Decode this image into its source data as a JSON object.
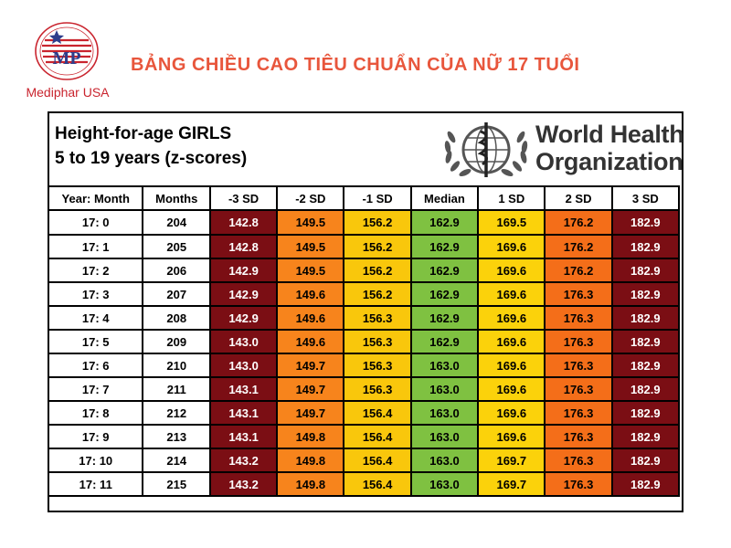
{
  "brand": {
    "name": "Mediphar USA",
    "monogram": "MP"
  },
  "page_title": "BẢNG CHIỀU CAO TIÊU CHUẨN CỦA NỮ 17 TUỔI",
  "chart": {
    "title_line1": "Height-for-age GIRLS",
    "title_line2": "5 to 19 years (z-scores)",
    "org_line1": "World Health",
    "org_line2": "Organization"
  },
  "table": {
    "headers": [
      "Year: Month",
      "Months",
      "-3 SD",
      "-2 SD",
      "-1 SD",
      "Median",
      "1 SD",
      "2 SD",
      "3 SD"
    ],
    "rows": [
      [
        "17: 0",
        "204",
        "142.8",
        "149.5",
        "156.2",
        "162.9",
        "169.5",
        "176.2",
        "182.9"
      ],
      [
        "17: 1",
        "205",
        "142.8",
        "149.5",
        "156.2",
        "162.9",
        "169.6",
        "176.2",
        "182.9"
      ],
      [
        "17: 2",
        "206",
        "142.9",
        "149.5",
        "156.2",
        "162.9",
        "169.6",
        "176.2",
        "182.9"
      ],
      [
        "17: 3",
        "207",
        "142.9",
        "149.6",
        "156.2",
        "162.9",
        "169.6",
        "176.3",
        "182.9"
      ],
      [
        "17: 4",
        "208",
        "142.9",
        "149.6",
        "156.3",
        "162.9",
        "169.6",
        "176.3",
        "182.9"
      ],
      [
        "17: 5",
        "209",
        "143.0",
        "149.6",
        "156.3",
        "162.9",
        "169.6",
        "176.3",
        "182.9"
      ],
      [
        "17: 6",
        "210",
        "143.0",
        "149.7",
        "156.3",
        "163.0",
        "169.6",
        "176.3",
        "182.9"
      ],
      [
        "17: 7",
        "211",
        "143.1",
        "149.7",
        "156.3",
        "163.0",
        "169.6",
        "176.3",
        "182.9"
      ],
      [
        "17: 8",
        "212",
        "143.1",
        "149.7",
        "156.4",
        "163.0",
        "169.6",
        "176.3",
        "182.9"
      ],
      [
        "17: 9",
        "213",
        "143.1",
        "149.8",
        "156.4",
        "163.0",
        "169.6",
        "176.3",
        "182.9"
      ],
      [
        "17: 10",
        "214",
        "143.2",
        "149.8",
        "156.4",
        "163.0",
        "169.7",
        "176.3",
        "182.9"
      ],
      [
        "17: 11",
        "215",
        "143.2",
        "149.8",
        "156.4",
        "163.0",
        "169.7",
        "176.3",
        "182.9"
      ]
    ]
  },
  "colors": {
    "title": "#e8563c",
    "brand": "#c9242e",
    "sd3": "#7b0e14",
    "sd2_neg": "#f7841c",
    "sd1_neg": "#f9c70c",
    "median": "#7fc141",
    "sd1": "#fbd20b",
    "sd2": "#f46e19"
  },
  "icons": {
    "logo": "mediphar-logo-icon",
    "emblem": "who-emblem-icon"
  }
}
